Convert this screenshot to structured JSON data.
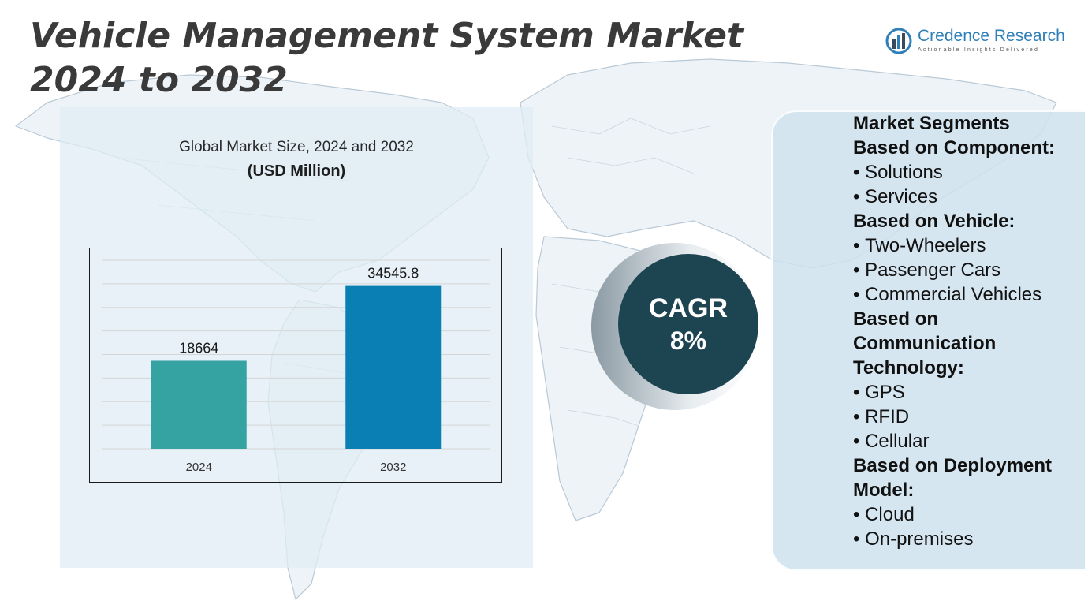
{
  "title": "Vehicle Management System Market 2024 to 2032",
  "logo": {
    "name": "Credence Research",
    "tagline": "Actionable Insights Delivered"
  },
  "chart_data": {
    "type": "bar",
    "title": "Global Market Size, 2024 and 2032",
    "subtitle": "(USD Million)",
    "categories": [
      "2024",
      "2032"
    ],
    "values": [
      18664,
      34545.8
    ],
    "value_labels": [
      "18664",
      "34545.8"
    ],
    "ylim": [
      0,
      40000
    ],
    "grid": true,
    "colors": [
      "#36a3a3",
      "#0a7fb3"
    ]
  },
  "cagr": {
    "label": "CAGR",
    "value": "8%"
  },
  "segments": [
    {
      "type": "heading",
      "text": "Market Segments"
    },
    {
      "type": "heading",
      "text": "Based on Component:"
    },
    {
      "type": "item",
      "text": "Solutions"
    },
    {
      "type": "item",
      "text": "Services"
    },
    {
      "type": "heading",
      "text": "Based on Vehicle:"
    },
    {
      "type": "item",
      "text": "Two-Wheelers"
    },
    {
      "type": "item",
      "text": "Passenger Cars"
    },
    {
      "type": "item",
      "text": "Commercial Vehicles"
    },
    {
      "type": "heading",
      "text": "Based on"
    },
    {
      "type": "heading",
      "text": "Communication"
    },
    {
      "type": "heading",
      "text": "Technology:"
    },
    {
      "type": "item",
      "text": "GPS"
    },
    {
      "type": "item",
      "text": "RFID"
    },
    {
      "type": "item",
      "text": "Cellular"
    },
    {
      "type": "heading",
      "text": "Based on Deployment"
    },
    {
      "type": "heading",
      "text": "Model:"
    },
    {
      "type": "item",
      "text": "Cloud"
    },
    {
      "type": "item",
      "text": "On-premises"
    }
  ]
}
